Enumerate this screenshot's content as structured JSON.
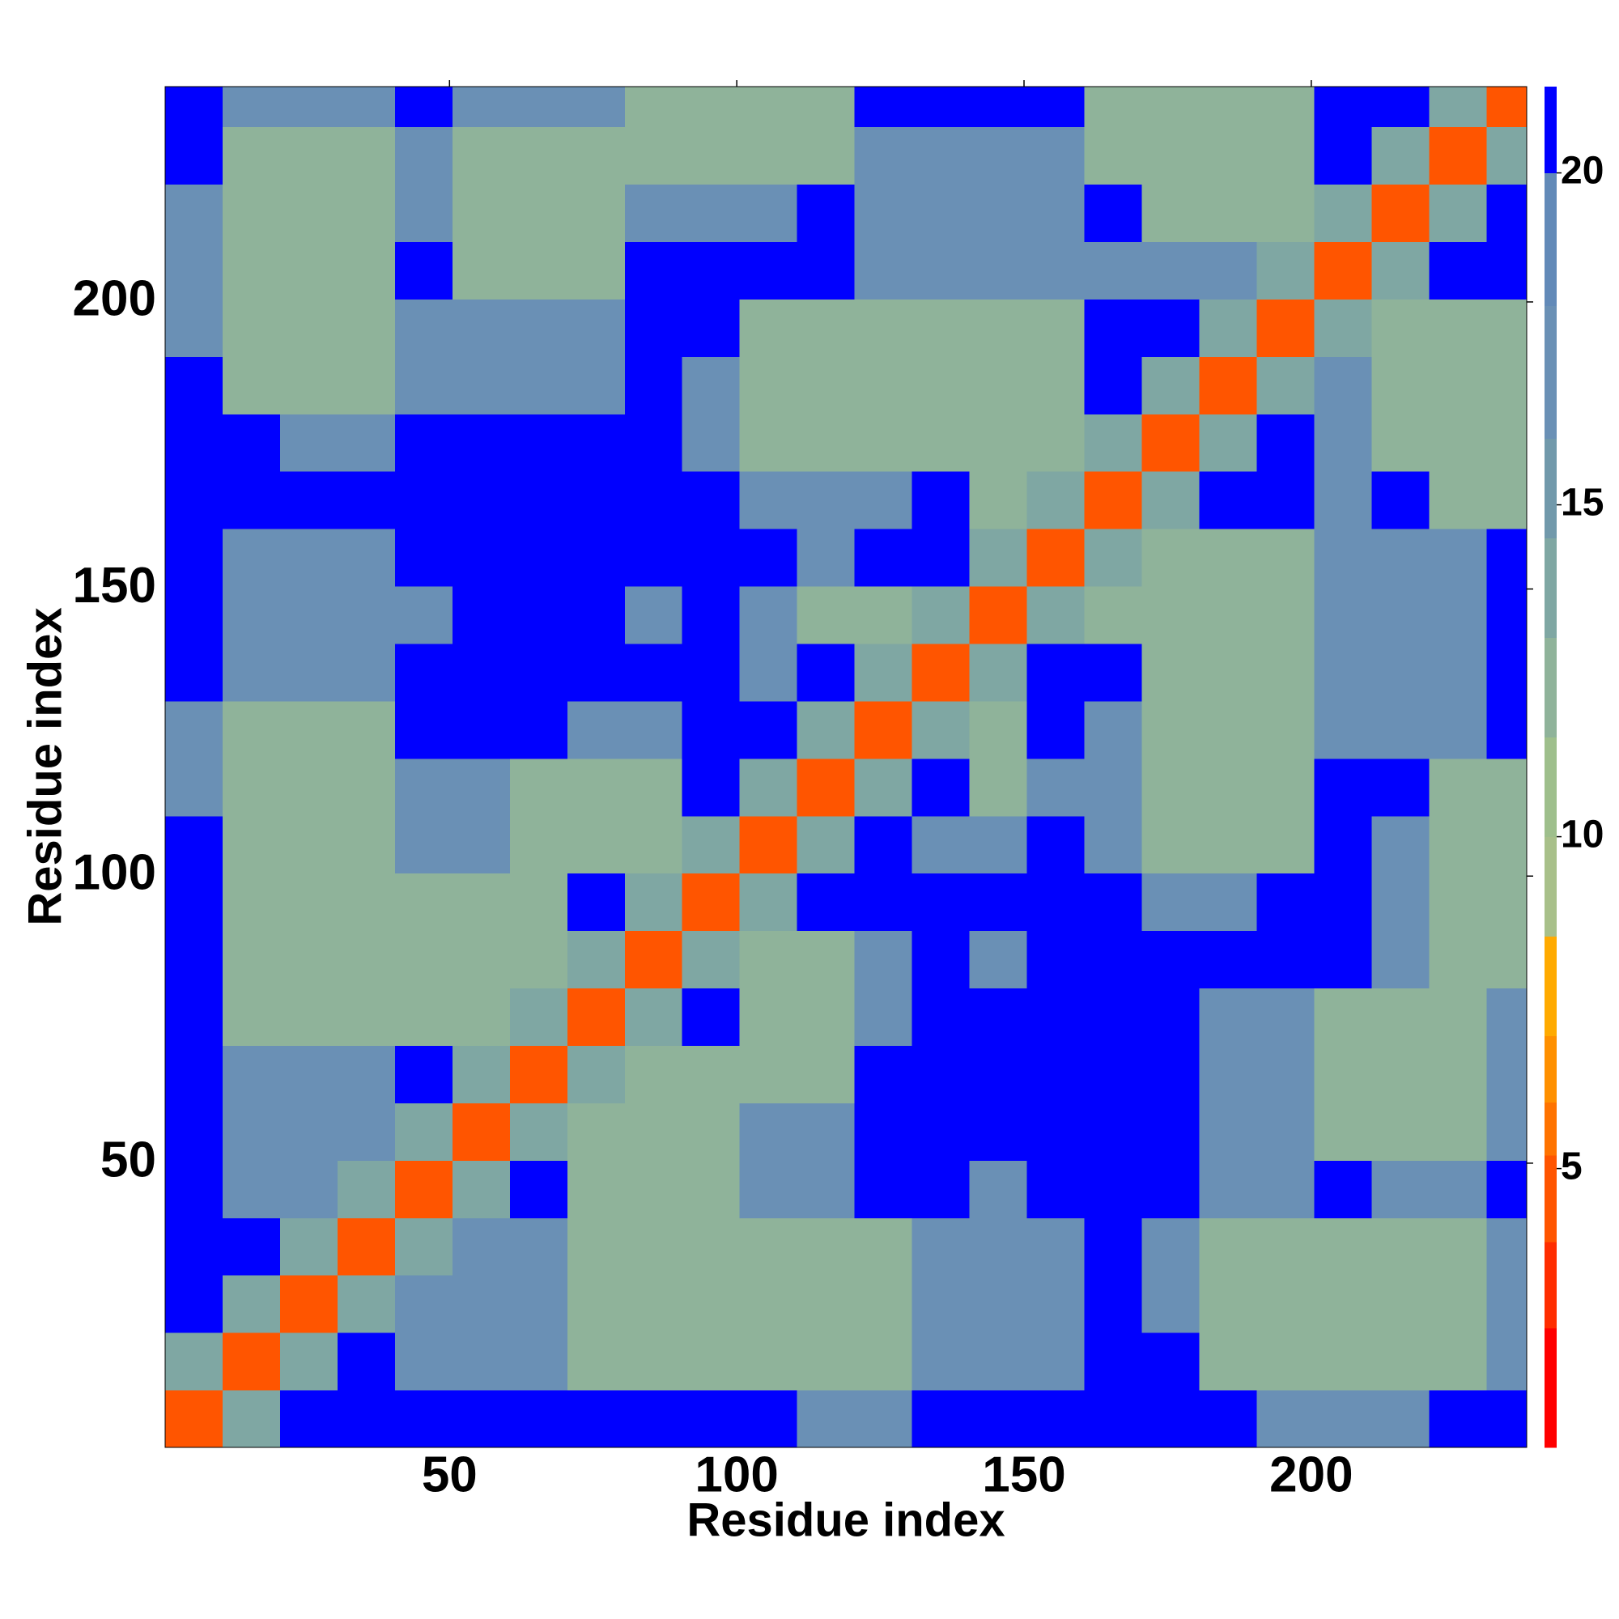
{
  "chart_data": {
    "type": "heatmap",
    "x_label": "Residue index",
    "y_label": "Residue index",
    "x_edges": [
      0.5,
      10.5,
      20.5,
      30.5,
      40.5,
      50.5,
      60.5,
      70.5,
      80.5,
      90.5,
      100.5,
      110.5,
      120.5,
      130.5,
      140.5,
      150.5,
      160.5,
      170.5,
      180.5,
      190.5,
      200.5,
      210.5,
      220.5,
      230.5,
      237.5
    ],
    "y_edges": [
      0.5,
      10.5,
      20.5,
      30.5,
      40.5,
      50.5,
      60.5,
      70.5,
      80.5,
      90.5,
      100.5,
      110.5,
      120.5,
      130.5,
      140.5,
      150.5,
      160.5,
      170.5,
      180.5,
      190.5,
      200.5,
      210.5,
      220.5,
      230.5,
      237.5
    ],
    "z": [
      [
        4,
        14,
        21,
        21,
        21,
        21,
        21,
        21,
        21,
        21,
        21,
        18,
        18,
        21,
        21,
        21,
        21,
        21,
        21,
        18,
        18,
        18,
        21,
        21
      ],
      [
        14,
        4,
        14,
        21,
        18,
        18,
        18,
        12,
        12,
        12,
        12,
        12,
        12,
        18,
        18,
        18,
        21,
        21,
        12,
        12,
        12,
        12,
        12,
        18
      ],
      [
        21,
        14,
        4,
        14,
        18,
        18,
        18,
        12,
        12,
        12,
        12,
        12,
        12,
        18,
        18,
        18,
        21,
        18,
        12,
        12,
        12,
        12,
        12,
        18
      ],
      [
        21,
        21,
        14,
        4,
        14,
        18,
        18,
        12,
        12,
        12,
        12,
        12,
        12,
        18,
        18,
        18,
        21,
        18,
        12,
        12,
        12,
        12,
        12,
        18
      ],
      [
        21,
        18,
        18,
        14,
        4,
        14,
        21,
        12,
        12,
        12,
        18,
        18,
        21,
        21,
        18,
        21,
        21,
        21,
        18,
        18,
        21,
        18,
        18,
        21
      ],
      [
        21,
        18,
        18,
        18,
        14,
        4,
        14,
        12,
        12,
        12,
        18,
        18,
        21,
        21,
        21,
        21,
        21,
        21,
        18,
        18,
        12,
        12,
        12,
        18
      ],
      [
        21,
        18,
        18,
        18,
        21,
        14,
        4,
        14,
        12,
        12,
        12,
        12,
        21,
        21,
        21,
        21,
        21,
        21,
        18,
        18,
        12,
        12,
        12,
        18
      ],
      [
        21,
        12,
        12,
        12,
        12,
        12,
        14,
        4,
        14,
        21,
        12,
        12,
        18,
        21,
        21,
        21,
        21,
        21,
        18,
        18,
        12,
        12,
        12,
        18
      ],
      [
        21,
        12,
        12,
        12,
        12,
        12,
        12,
        14,
        4,
        14,
        12,
        12,
        18,
        21,
        18,
        21,
        21,
        21,
        21,
        21,
        21,
        18,
        12,
        12
      ],
      [
        21,
        12,
        12,
        12,
        12,
        12,
        12,
        21,
        14,
        4,
        14,
        21,
        21,
        21,
        21,
        21,
        21,
        18,
        18,
        21,
        21,
        18,
        12,
        12
      ],
      [
        21,
        12,
        12,
        12,
        18,
        18,
        12,
        12,
        12,
        14,
        4,
        14,
        21,
        18,
        18,
        21,
        18,
        12,
        12,
        12,
        21,
        18,
        12,
        12
      ],
      [
        18,
        12,
        12,
        12,
        18,
        18,
        12,
        12,
        12,
        21,
        14,
        4,
        14,
        21,
        12,
        18,
        18,
        12,
        12,
        12,
        21,
        21,
        12,
        12
      ],
      [
        18,
        12,
        12,
        12,
        21,
        21,
        21,
        18,
        18,
        21,
        21,
        14,
        4,
        14,
        12,
        21,
        18,
        12,
        12,
        12,
        18,
        18,
        18,
        21
      ],
      [
        21,
        18,
        18,
        18,
        21,
        21,
        21,
        21,
        21,
        21,
        18,
        21,
        14,
        4,
        14,
        21,
        21,
        12,
        12,
        12,
        18,
        18,
        18,
        21
      ],
      [
        21,
        18,
        18,
        18,
        18,
        21,
        21,
        21,
        18,
        21,
        18,
        12,
        12,
        14,
        4,
        14,
        12,
        12,
        12,
        12,
        18,
        18,
        18,
        21
      ],
      [
        21,
        18,
        18,
        18,
        21,
        21,
        21,
        21,
        21,
        21,
        21,
        18,
        21,
        21,
        14,
        4,
        14,
        12,
        12,
        12,
        18,
        18,
        18,
        21
      ],
      [
        21,
        21,
        21,
        21,
        21,
        21,
        21,
        21,
        21,
        21,
        18,
        18,
        18,
        21,
        12,
        14,
        4,
        14,
        21,
        21,
        18,
        21,
        12,
        12
      ],
      [
        21,
        21,
        18,
        18,
        21,
        21,
        21,
        21,
        21,
        18,
        12,
        12,
        12,
        12,
        12,
        12,
        14,
        4,
        14,
        21,
        18,
        12,
        12,
        12
      ],
      [
        21,
        12,
        12,
        12,
        18,
        18,
        18,
        18,
        21,
        18,
        12,
        12,
        12,
        12,
        12,
        12,
        21,
        14,
        4,
        14,
        18,
        12,
        12,
        12
      ],
      [
        18,
        12,
        12,
        12,
        18,
        18,
        18,
        18,
        21,
        21,
        12,
        12,
        12,
        12,
        12,
        12,
        21,
        21,
        14,
        4,
        14,
        12,
        12,
        12
      ],
      [
        18,
        12,
        12,
        12,
        21,
        12,
        12,
        12,
        21,
        21,
        21,
        21,
        18,
        18,
        18,
        18,
        18,
        18,
        18,
        14,
        4,
        14,
        21,
        21
      ],
      [
        18,
        12,
        12,
        12,
        18,
        12,
        12,
        12,
        18,
        18,
        18,
        21,
        18,
        18,
        18,
        18,
        21,
        12,
        12,
        12,
        14,
        4,
        14,
        21
      ],
      [
        21,
        12,
        12,
        12,
        18,
        12,
        12,
        12,
        12,
        12,
        12,
        12,
        18,
        18,
        18,
        18,
        12,
        12,
        12,
        12,
        21,
        14,
        4,
        14
      ],
      [
        21,
        18,
        18,
        18,
        21,
        18,
        18,
        18,
        12,
        12,
        12,
        12,
        21,
        21,
        21,
        21,
        12,
        12,
        12,
        12,
        21,
        21,
        14,
        4
      ]
    ],
    "xlim": [
      0.5,
      237.5
    ],
    "ylim": [
      0.5,
      237.5
    ],
    "xticks": [
      50,
      100,
      150,
      200
    ],
    "yticks": [
      50,
      100,
      150,
      200
    ],
    "colorbar": {
      "lim": [
        0.8,
        21.3
      ],
      "ticks": [
        5,
        10,
        15,
        20
      ],
      "bounds": [
        0.8,
        2.6,
        3.9,
        5.2,
        6,
        7,
        8.5,
        10,
        11.5,
        13,
        14.5,
        16,
        18,
        20,
        21.3
      ],
      "colors": [
        "#ff0000",
        "#ff2d00",
        "#ff5500",
        "#ff7300",
        "#ff9000",
        "#ffaa00",
        "#a8c08a",
        "#9ebf8c",
        "#8fb39a",
        "#7fa7a3",
        "#7199ab",
        "#6a90b5",
        "#628ab8",
        "#0000ff"
      ]
    }
  }
}
